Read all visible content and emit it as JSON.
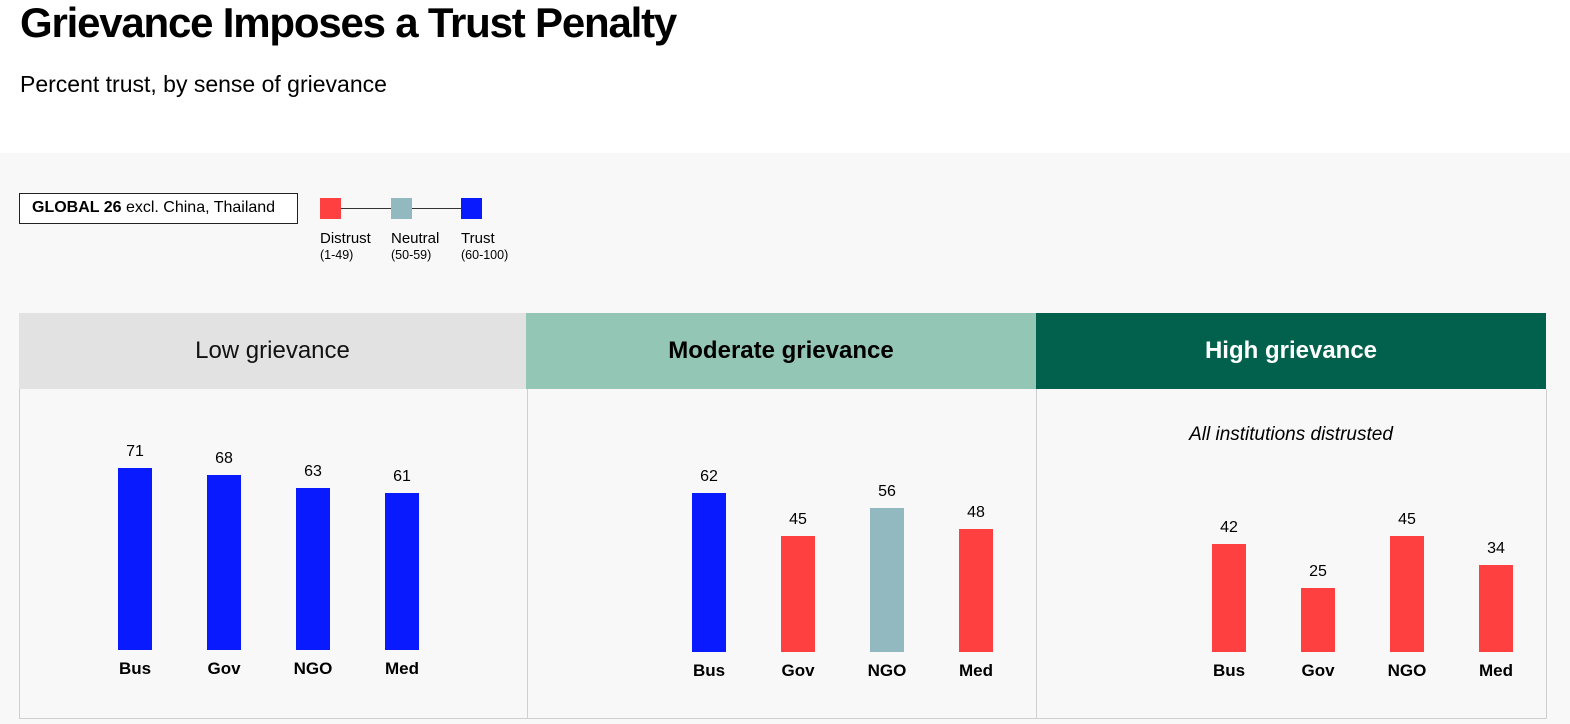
{
  "title": "Grievance Imposes a Trust Penalty",
  "subtitle": "Percent trust, by sense of grievance",
  "scope": {
    "bold": "GLOBAL 26",
    "rest": " excl. China, Thailand"
  },
  "legend": [
    {
      "label": "Distrust",
      "range": "(1-49)",
      "color": "#ff4040"
    },
    {
      "label": "Neutral",
      "range": "(50-59)",
      "color": "#93b9c0"
    },
    {
      "label": "Trust",
      "range": "(60-100)",
      "color": "#0a1aff"
    }
  ],
  "chart_data": {
    "type": "bar",
    "ylim": [
      0,
      100
    ],
    "panels": [
      {
        "name": "Low grievance",
        "header_bg": "#e2e2e2",
        "header_color": "#111111",
        "header_bold": false,
        "annotation": "",
        "categories": [
          "Bus",
          "Gov",
          "NGO",
          "Med"
        ],
        "values": [
          71,
          68,
          63,
          61
        ]
      },
      {
        "name": "Moderate grievance",
        "header_bg": "#94c6b5",
        "header_color": "#000000",
        "header_bold": true,
        "annotation": "",
        "categories": [
          "Bus",
          "Gov",
          "NGO",
          "Med"
        ],
        "values": [
          62,
          45,
          56,
          48
        ]
      },
      {
        "name": "High grievance",
        "header_bg": "#02614d",
        "header_color": "#ffffff",
        "header_bold": true,
        "annotation": "All institutions distrusted",
        "categories": [
          "Bus",
          "Gov",
          "NGO",
          "Med"
        ],
        "values": [
          42,
          25,
          45,
          34
        ]
      }
    ]
  }
}
